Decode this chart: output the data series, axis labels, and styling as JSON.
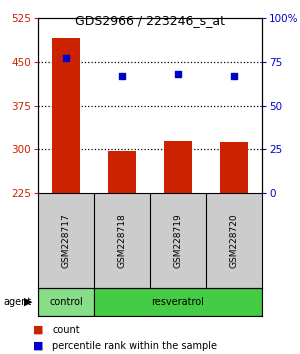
{
  "title": "GDS2966 / 223246_s_at",
  "samples": [
    "GSM228717",
    "GSM228718",
    "GSM228719",
    "GSM228720"
  ],
  "bar_values": [
    490,
    297,
    315,
    312
  ],
  "bar_bottom": 225,
  "bar_color": "#cc2200",
  "percentile_values": [
    77,
    67,
    68,
    67
  ],
  "left_ylim": [
    225,
    525
  ],
  "left_yticks": [
    225,
    300,
    375,
    450,
    525
  ],
  "right_ylim": [
    0,
    100
  ],
  "right_yticks": [
    0,
    25,
    50,
    75,
    100
  ],
  "right_yticklabels": [
    "0",
    "25",
    "50",
    "75",
    "100%"
  ],
  "left_tick_color": "#cc2200",
  "right_tick_color": "#0000cc",
  "dot_color": "#0000cc",
  "hline_values": [
    300,
    375,
    450
  ],
  "group_info": [
    {
      "label": "control",
      "indices": [
        0
      ],
      "color": "#88dd88"
    },
    {
      "label": "resveratrol",
      "indices": [
        1,
        2,
        3
      ],
      "color": "#44cc44"
    }
  ],
  "sample_bg_color": "#cccccc",
  "legend_count_color": "#cc2200",
  "legend_pct_color": "#0000cc",
  "background_color": "#ffffff",
  "figsize": [
    3.0,
    3.54
  ],
  "dpi": 100
}
